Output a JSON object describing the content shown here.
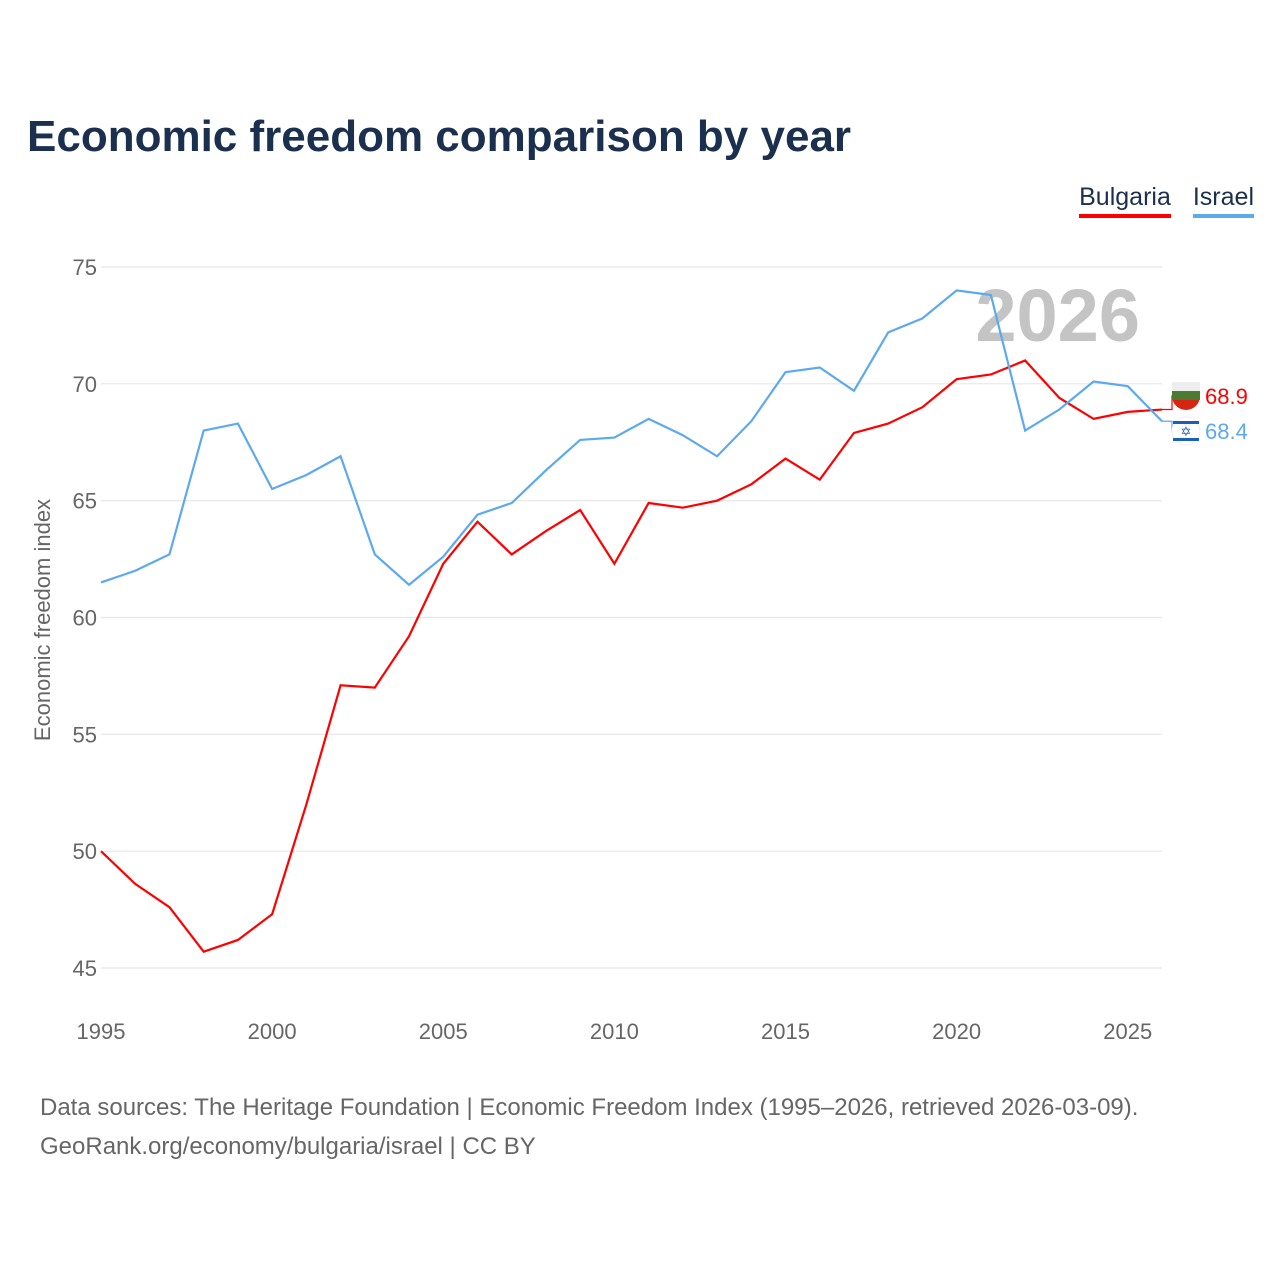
{
  "title": "Economic freedom comparison by year",
  "legend": [
    {
      "label": "Bulgaria",
      "color": "#ff0000"
    },
    {
      "label": "Israel",
      "color": "#5da9ef"
    }
  ],
  "watermark_year": "2026",
  "source_line1": "Data sources: The Heritage Foundation | Economic Freedom Index (1995–2026, retrieved 2026-03-09).",
  "source_line2": "GeoRank.org/economy/bulgaria/israel | CC BY",
  "chart_data": {
    "type": "line",
    "title": "Economic freedom comparison by year",
    "xlabel": "",
    "ylabel": "Economic freedom index",
    "xlim": [
      1995,
      2026
    ],
    "ylim": [
      45,
      75
    ],
    "xticks": [
      1995,
      2000,
      2005,
      2010,
      2015,
      2020,
      2025
    ],
    "yticks": [
      45,
      50,
      55,
      60,
      65,
      70,
      75
    ],
    "grid": true,
    "legend_position": "top-right",
    "x": [
      1995,
      1996,
      1997,
      1998,
      1999,
      2000,
      2001,
      2002,
      2003,
      2004,
      2005,
      2006,
      2007,
      2008,
      2009,
      2010,
      2011,
      2012,
      2013,
      2014,
      2015,
      2016,
      2017,
      2018,
      2019,
      2020,
      2021,
      2022,
      2023,
      2024,
      2025,
      2026
    ],
    "series": [
      {
        "name": "Bulgaria",
        "color": "#ff0000",
        "end_label": "68.9",
        "values": [
          50.0,
          48.6,
          47.6,
          45.7,
          46.2,
          47.3,
          52.0,
          57.1,
          57.0,
          59.2,
          62.3,
          64.1,
          62.7,
          63.7,
          64.6,
          62.3,
          64.9,
          64.7,
          65.0,
          65.7,
          66.8,
          65.9,
          67.9,
          68.3,
          69.0,
          70.2,
          70.4,
          71.0,
          69.4,
          68.5,
          68.8,
          68.9
        ]
      },
      {
        "name": "Israel",
        "color": "#5da9ef",
        "end_label": "68.4",
        "values": [
          61.5,
          62.0,
          62.7,
          68.0,
          68.3,
          65.5,
          66.1,
          66.9,
          62.7,
          61.4,
          62.6,
          64.4,
          64.9,
          66.3,
          67.6,
          67.7,
          68.5,
          67.8,
          66.9,
          68.4,
          70.5,
          70.7,
          69.7,
          72.2,
          72.8,
          74.0,
          73.8,
          68.0,
          68.9,
          70.1,
          69.9,
          68.4
        ]
      }
    ]
  }
}
